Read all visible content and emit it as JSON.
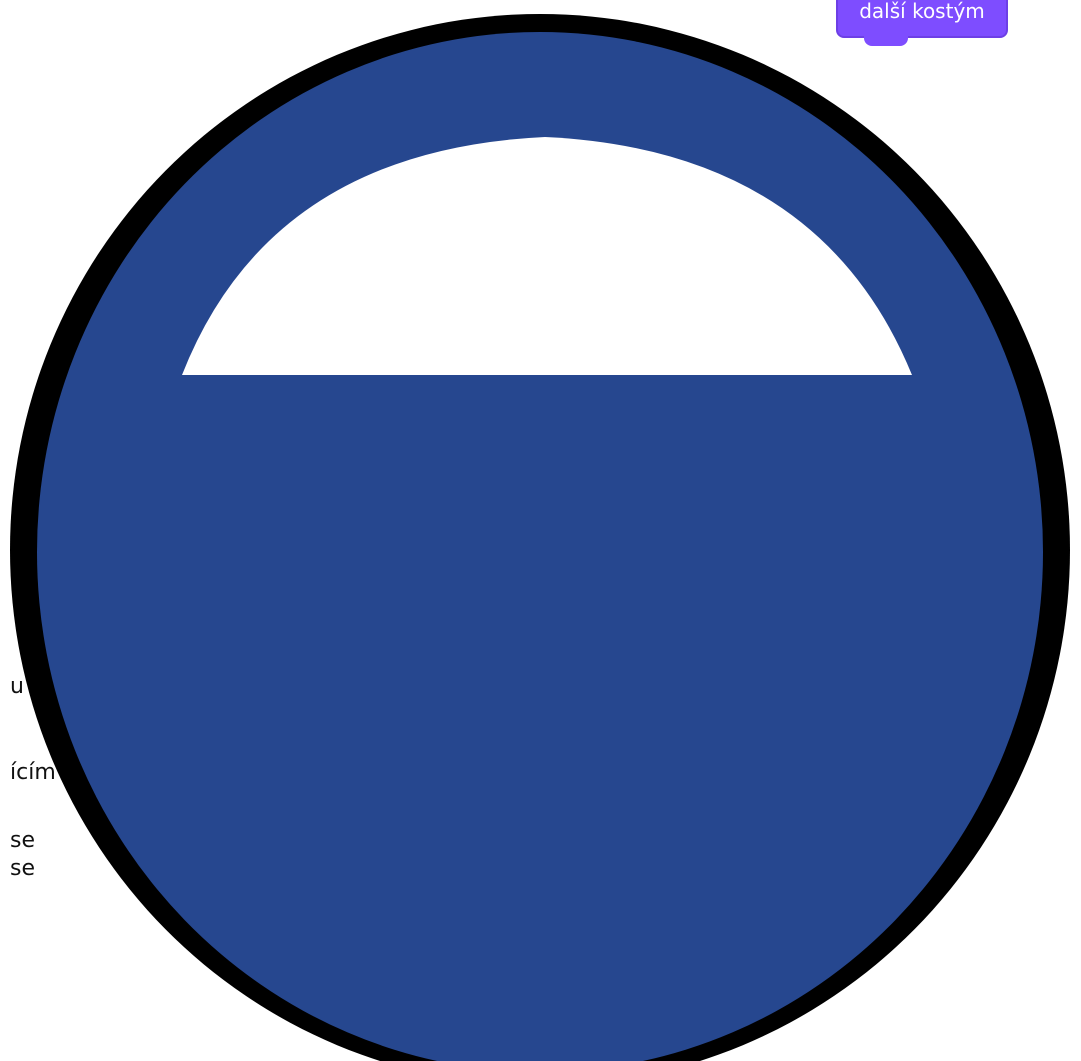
{
  "scratch_block": {
    "label": "další kostým",
    "color": "#7e4dff"
  },
  "side_text": {
    "line_1": "u",
    "line_2": "ícím",
    "line_3": "se",
    "line_4": "se"
  },
  "costume": {
    "description_icon": "half-empty-globe-icon",
    "fill_color": "#26478f",
    "outline_color": "#000000",
    "highlight_color": "#ffffff"
  }
}
